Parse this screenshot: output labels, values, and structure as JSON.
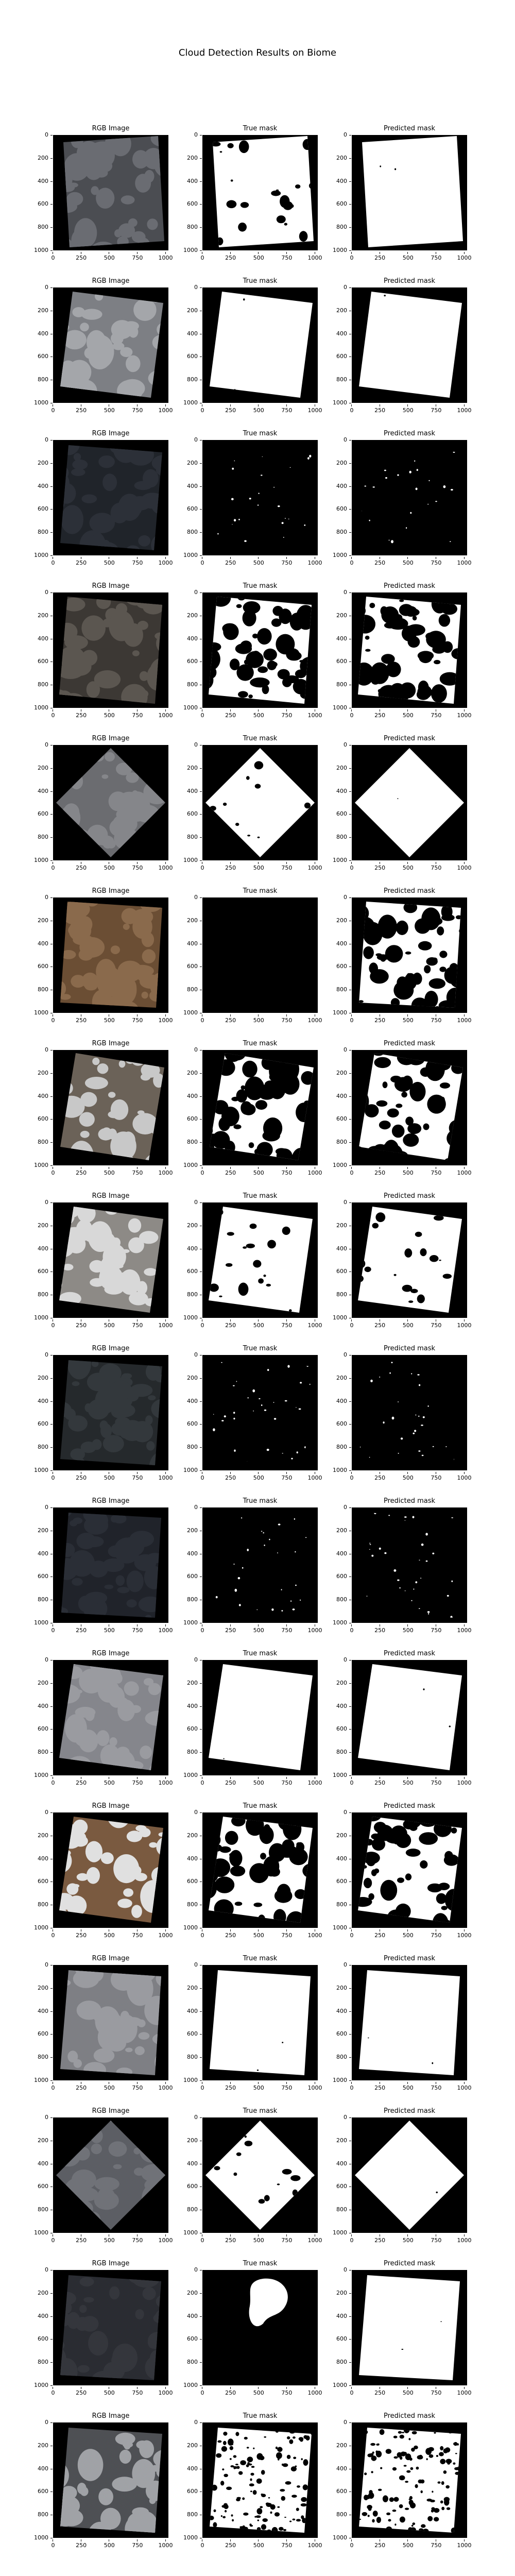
{
  "figure": {
    "title": "Cloud Detection Results on Biome",
    "panel_titles": [
      "RGB Image",
      "True mask",
      "Predicted mask"
    ],
    "y_ticks": [
      "0",
      "200",
      "400",
      "600",
      "800",
      "1000"
    ],
    "x_ticks": [
      "0",
      "250",
      "500",
      "750",
      "1000"
    ]
  },
  "rows": [
    {
      "rgb": "#4b4d52",
      "rgb_texture": "#6a6c72",
      "true": "mostly-cloud",
      "pred": "full-cloud"
    },
    {
      "rgb": "#7d7f84",
      "rgb_texture": "#a4a6aa",
      "true": "full-cloud",
      "pred": "full-cloud"
    },
    {
      "rgb": "#20242a",
      "rgb_texture": "#2c3038",
      "true": "sparse",
      "pred": "sparse"
    },
    {
      "rgb": "#3c3834",
      "rgb_texture": "#5b5650",
      "true": "mixed",
      "pred": "mixed"
    },
    {
      "rgb": "#6b6c70",
      "rgb_texture": "#85868a",
      "true": "mostly-cloud",
      "pred": "full-cloud"
    },
    {
      "rgb": "#6b4e34",
      "rgb_texture": "#8a6a4c",
      "true": "empty",
      "pred": "mixed"
    },
    {
      "rgb": "#6b6258",
      "rgb_texture": "#c8c8c8",
      "true": "mixed",
      "pred": "mixed"
    },
    {
      "rgb": "#8d8a86",
      "rgb_texture": "#d8d8d8",
      "true": "mostly-cloud",
      "pred": "mostly-cloud"
    },
    {
      "rgb": "#25292c",
      "rgb_texture": "#33383c",
      "true": "sparse",
      "pred": "sparse"
    },
    {
      "rgb": "#20232a",
      "rgb_texture": "#2a2e36",
      "true": "sparse",
      "pred": "sparse"
    },
    {
      "rgb": "#85868c",
      "rgb_texture": "#9a9ba0",
      "true": "full-cloud",
      "pred": "full-cloud"
    },
    {
      "rgb": "#7a5a40",
      "rgb_texture": "#e0e0e0",
      "true": "mixed",
      "pred": "mixed"
    },
    {
      "rgb": "#7e7f84",
      "rgb_texture": "#9a9ba0",
      "true": "full-cloud",
      "pred": "full-cloud"
    },
    {
      "rgb": "#5c5e64",
      "rgb_texture": "#707278",
      "true": "mostly-cloud",
      "pred": "full-cloud"
    },
    {
      "rgb": "#2a2c32",
      "rgb_texture": "#34363c",
      "true": "blob",
      "pred": "full-cloud"
    },
    {
      "rgb": "#4e5054",
      "rgb_texture": "#a0a2a6",
      "true": "speckle",
      "pred": "speckle"
    }
  ]
}
